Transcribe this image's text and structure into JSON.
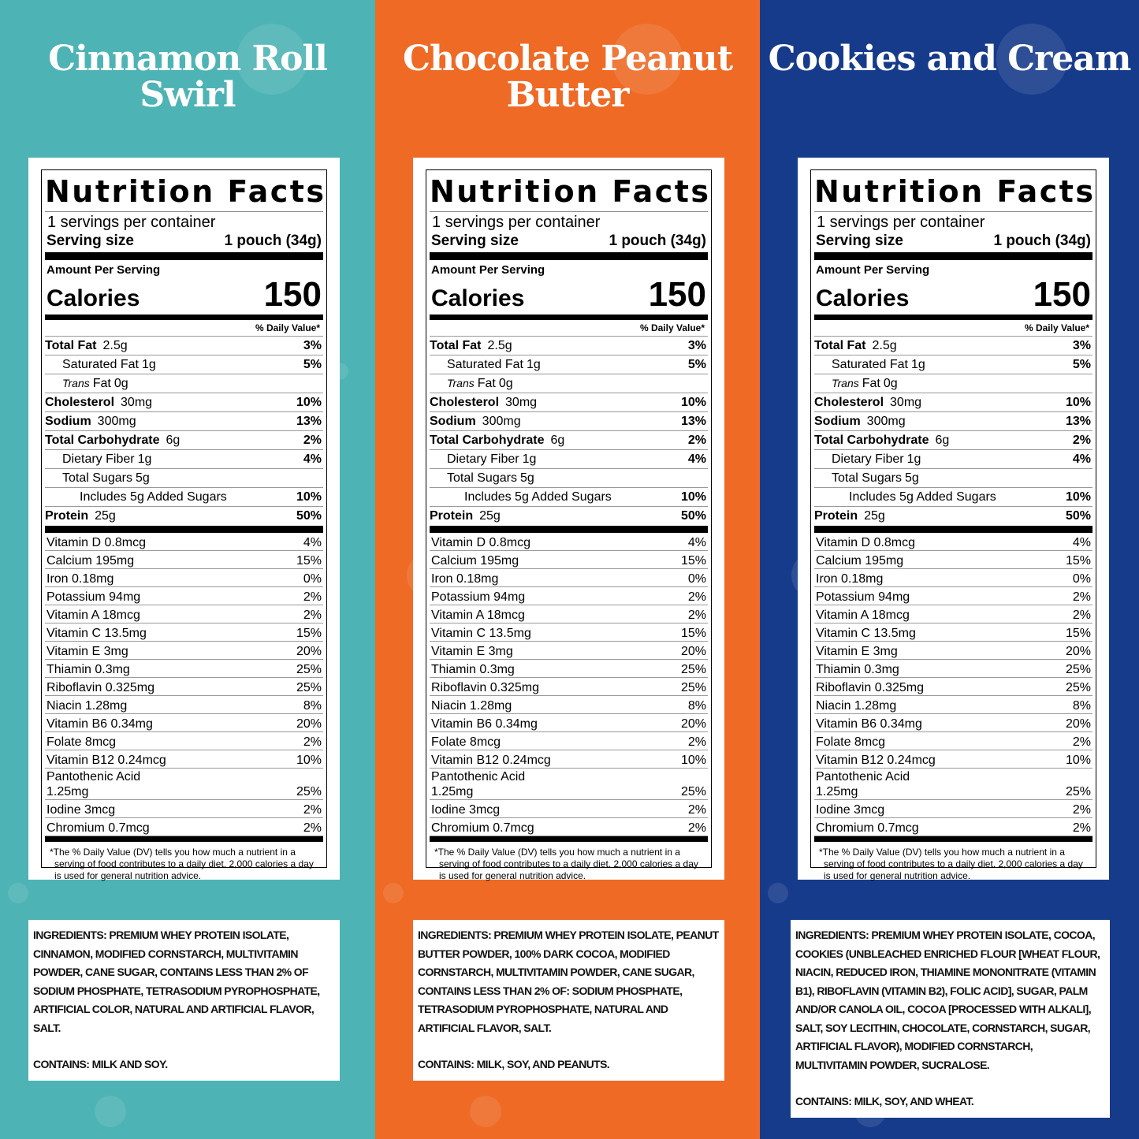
{
  "panels": [
    {
      "title": "Cinnamon Roll Swirl",
      "color": "#4db3b4",
      "facts": {
        "heading": "Nutrition Facts",
        "servings": "1 servings per container",
        "serving_size_label": "Serving size",
        "serving_size": "1 pouch (34g)",
        "amount_per_serving": "Amount Per Serving",
        "calories_label": "Calories",
        "calories": 150,
        "dv_header": "% Daily Value*",
        "nutrients": [
          {
            "name": "Total Fat",
            "amount": "2.5g",
            "dv": "3%",
            "sub": [
              {
                "name": "Saturated Fat",
                "amount": "1g",
                "dv": "5%"
              },
              {
                "name_italic": "Trans",
                "name": "Fat",
                "amount": "0g"
              }
            ]
          },
          {
            "name": "Cholesterol",
            "amount": "30mg",
            "dv": "10%"
          },
          {
            "name": "Sodium",
            "amount": "300mg",
            "dv": "13%"
          },
          {
            "name": "Total Carbohydrate",
            "amount": "6g",
            "dv": "2%",
            "sub": [
              {
                "name": "Dietary Fiber",
                "amount": "1g",
                "dv": "4%"
              },
              {
                "name": "Total Sugars",
                "amount": "5g",
                "sub": [
                  {
                    "name": "Includes 5g Added Sugars",
                    "dv": "10%"
                  }
                ]
              }
            ]
          },
          {
            "name": "Protein",
            "amount": "25g",
            "dv": "50%"
          }
        ],
        "vitamins": [
          {
            "name": "Vitamin D 0.8mcg",
            "dv": "4%"
          },
          {
            "name": "Calcium 195mg",
            "dv": "15%"
          },
          {
            "name": "Iron 0.18mg",
            "dv": "0%"
          },
          {
            "name": "Potassium 94mg",
            "dv": "2%"
          },
          {
            "name": "Vitamin A 18mcg",
            "dv": "2%"
          },
          {
            "name": "Vitamin C 13.5mg",
            "dv": "15%"
          },
          {
            "name": "Vitamin E 3mg",
            "dv": "20%"
          },
          {
            "name": "Thiamin 0.3mg",
            "dv": "25%"
          },
          {
            "name": "Riboflavin 0.325mg",
            "dv": "25%"
          },
          {
            "name": "Niacin 1.28mg",
            "dv": "8%"
          },
          {
            "name": "Vitamin B6 0.34mg",
            "dv": "20%"
          },
          {
            "name": "Folate 8mcg",
            "dv": "2%"
          },
          {
            "name": "Vitamin B12 0.24mcg",
            "dv": "10%"
          },
          {
            "name": "Pantothenic Acid 1.25mg",
            "dv": "25%"
          },
          {
            "name": "Iodine 3mcg",
            "dv": "2%"
          },
          {
            "name": "Chromium 0.7mcg",
            "dv": "2%"
          }
        ],
        "footnote": "*The % Daily Value (DV) tells you how much a nutrient in a serving of food contributes to a daily diet. 2,000 calories a day is used for general nutrition advice."
      },
      "ingredients": "INGREDIENTS: PREMIUM WHEY PROTEIN ISOLATE, CINNAMON, MODIFIED CORNSTARCH, MULTIVITAMIN POWDER, CANE SUGAR, CONTAINS LESS THAN 2% OF SODIUM PHOSPHATE, TETRASODIUM PYROPHOSPHATE, ARTIFICIAL COLOR, NATURAL AND ARTIFICIAL FLAVOR, SALT.",
      "contains": "CONTAINS: MILK AND SOY."
    },
    {
      "title": "Chocolate Peanut Butter",
      "color": "#ee6a25",
      "facts": {
        "heading": "Nutrition Facts",
        "servings": "1 servings per container",
        "serving_size_label": "Serving size",
        "serving_size": "1 pouch (34g)",
        "amount_per_serving": "Amount Per Serving",
        "calories_label": "Calories",
        "calories": 150,
        "dv_header": "% Daily Value*",
        "nutrients": [
          {
            "name": "Total Fat",
            "amount": "2.5g",
            "dv": "3%",
            "sub": [
              {
                "name": "Saturated Fat",
                "amount": "1g",
                "dv": "5%"
              },
              {
                "name_italic": "Trans",
                "name": "Fat",
                "amount": "0g"
              }
            ]
          },
          {
            "name": "Cholesterol",
            "amount": "30mg",
            "dv": "10%"
          },
          {
            "name": "Sodium",
            "amount": "300mg",
            "dv": "13%"
          },
          {
            "name": "Total Carbohydrate",
            "amount": "6g",
            "dv": "2%",
            "sub": [
              {
                "name": "Dietary Fiber",
                "amount": "1g",
                "dv": "4%"
              },
              {
                "name": "Total Sugars",
                "amount": "5g",
                "sub": [
                  {
                    "name": "Includes 5g Added Sugars",
                    "dv": "10%"
                  }
                ]
              }
            ]
          },
          {
            "name": "Protein",
            "amount": "25g",
            "dv": "50%"
          }
        ],
        "vitamins": [
          {
            "name": "Vitamin D 0.8mcg",
            "dv": "4%"
          },
          {
            "name": "Calcium 195mg",
            "dv": "15%"
          },
          {
            "name": "Iron 0.18mg",
            "dv": "0%"
          },
          {
            "name": "Potassium 94mg",
            "dv": "2%"
          },
          {
            "name": "Vitamin A 18mcg",
            "dv": "2%"
          },
          {
            "name": "Vitamin C 13.5mg",
            "dv": "15%"
          },
          {
            "name": "Vitamin E 3mg",
            "dv": "20%"
          },
          {
            "name": "Thiamin 0.3mg",
            "dv": "25%"
          },
          {
            "name": "Riboflavin 0.325mg",
            "dv": "25%"
          },
          {
            "name": "Niacin 1.28mg",
            "dv": "8%"
          },
          {
            "name": "Vitamin B6 0.34mg",
            "dv": "20%"
          },
          {
            "name": "Folate 8mcg",
            "dv": "2%"
          },
          {
            "name": "Vitamin B12 0.24mcg",
            "dv": "10%"
          },
          {
            "name": "Pantothenic Acid 1.25mg",
            "dv": "25%"
          },
          {
            "name": "Iodine 3mcg",
            "dv": "2%"
          },
          {
            "name": "Chromium 0.7mcg",
            "dv": "2%"
          }
        ],
        "footnote": "*The % Daily Value (DV) tells you how much a nutrient in a serving of food contributes to a daily diet. 2,000 calories a day is used for general nutrition advice."
      },
      "ingredients": "INGREDIENTS: PREMIUM WHEY PROTEIN ISOLATE, PEANUT BUTTER POWDER, 100% DARK COCOA, MODIFIED CORNSTARCH, MULTIVITAMIN POWDER, CANE SUGAR, CONTAINS LESS THAN 2% OF: SODIUM PHOSPHATE, TETRASODIUM PYROPHOSPHATE, NATURAL AND ARTIFICIAL FLAVOR, SALT.",
      "contains": "CONTAINS: MILK, SOY, AND PEANUTS."
    },
    {
      "title": "Cookies and Cream",
      "color": "#173b8b",
      "facts": {
        "heading": "Nutrition Facts",
        "servings": "1 servings per container",
        "serving_size_label": "Serving size",
        "serving_size": "1 pouch (34g)",
        "amount_per_serving": "Amount Per Serving",
        "calories_label": "Calories",
        "calories": 150,
        "dv_header": "% Daily Value*",
        "nutrients": [
          {
            "name": "Total Fat",
            "amount": "2.5g",
            "dv": "3%",
            "sub": [
              {
                "name": "Saturated Fat",
                "amount": "1g",
                "dv": "5%"
              },
              {
                "name_italic": "Trans",
                "name": "Fat",
                "amount": "0g"
              }
            ]
          },
          {
            "name": "Cholesterol",
            "amount": "30mg",
            "dv": "10%"
          },
          {
            "name": "Sodium",
            "amount": "300mg",
            "dv": "13%"
          },
          {
            "name": "Total Carbohydrate",
            "amount": "6g",
            "dv": "2%",
            "sub": [
              {
                "name": "Dietary Fiber",
                "amount": "1g",
                "dv": "4%"
              },
              {
                "name": "Total Sugars",
                "amount": "5g",
                "sub": [
                  {
                    "name": "Includes 5g Added Sugars",
                    "dv": "10%"
                  }
                ]
              }
            ]
          },
          {
            "name": "Protein",
            "amount": "25g",
            "dv": "50%"
          }
        ],
        "vitamins": [
          {
            "name": "Vitamin D 0.8mcg",
            "dv": "4%"
          },
          {
            "name": "Calcium 195mg",
            "dv": "15%"
          },
          {
            "name": "Iron 0.18mg",
            "dv": "0%"
          },
          {
            "name": "Potassium 94mg",
            "dv": "2%"
          },
          {
            "name": "Vitamin A 18mcg",
            "dv": "2%"
          },
          {
            "name": "Vitamin C 13.5mg",
            "dv": "15%"
          },
          {
            "name": "Vitamin E 3mg",
            "dv": "20%"
          },
          {
            "name": "Thiamin 0.3mg",
            "dv": "25%"
          },
          {
            "name": "Riboflavin 0.325mg",
            "dv": "25%"
          },
          {
            "name": "Niacin 1.28mg",
            "dv": "8%"
          },
          {
            "name": "Vitamin B6 0.34mg",
            "dv": "20%"
          },
          {
            "name": "Folate 8mcg",
            "dv": "2%"
          },
          {
            "name": "Vitamin B12 0.24mcg",
            "dv": "10%"
          },
          {
            "name": "Pantothenic Acid 1.25mg",
            "dv": "25%"
          },
          {
            "name": "Iodine 3mcg",
            "dv": "2%"
          },
          {
            "name": "Chromium 0.7mcg",
            "dv": "2%"
          }
        ],
        "footnote": "*The % Daily Value (DV) tells you how much a nutrient in a serving of food contributes to a daily diet. 2,000 calories a day is used for general nutrition advice."
      },
      "ingredients": "INGREDIENTS: PREMIUM WHEY PROTEIN ISOLATE, COCOA, COOKIES (UNBLEACHED ENRICHED FLOUR [WHEAT FLOUR, NIACIN, REDUCED IRON, THIAMINE MONONITRATE (VITAMIN B1), RIBOFLAVIN (VITAMIN B2), FOLIC ACID], SUGAR, PALM AND/OR CANOLA OIL, COCOA [PROCESSED WITH ALKALI], SALT, SOY LECITHIN, CHOCOLATE, CORNSTARCH, SUGAR, ARTIFICIAL FLAVOR), MODIFIED CORNSTARCH, MULTIVITAMIN POWDER, SUCRALOSE.",
      "contains": "CONTAINS: MILK, SOY, AND WHEAT."
    }
  ]
}
